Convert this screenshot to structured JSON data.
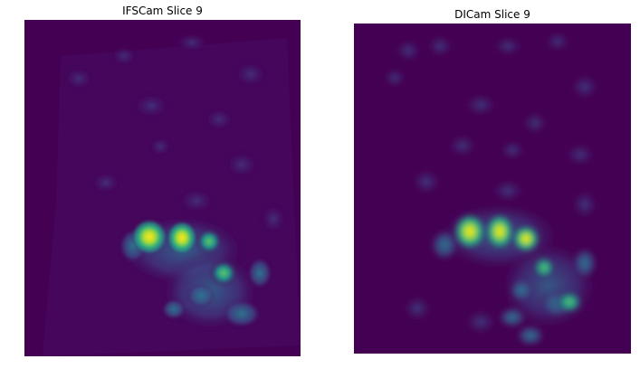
{
  "panels": [
    {
      "title": "IFSCam Slice 9",
      "colormap": "viridis",
      "background_color": "#440154",
      "peak_color": "#fde725"
    },
    {
      "title": "DICam Slice 9",
      "colormap": "viridis",
      "background_color": "#440154",
      "peak_color": "#fde725"
    }
  ]
}
